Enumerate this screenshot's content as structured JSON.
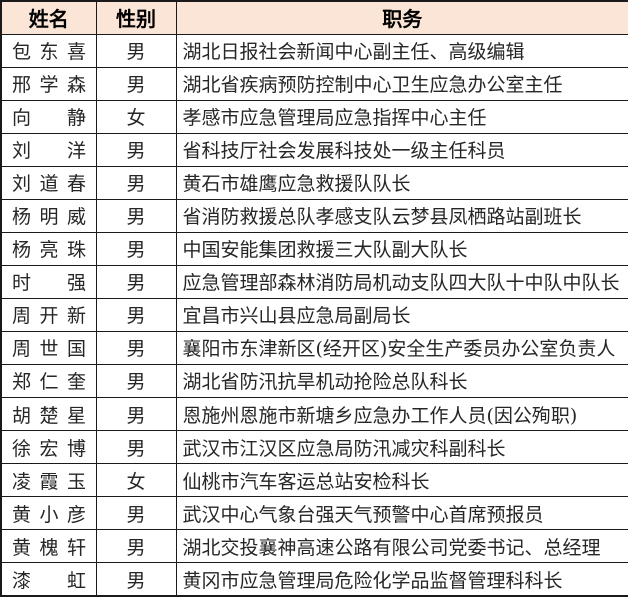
{
  "table": {
    "colors": {
      "header_bg": "#fbe5d6",
      "border": "#1a1a1a",
      "text": "#262626"
    },
    "columns": [
      {
        "key": "name",
        "label": "姓名"
      },
      {
        "key": "gender",
        "label": "性别"
      },
      {
        "key": "position",
        "label": "职务"
      }
    ],
    "rows": [
      {
        "name": "包东喜",
        "gender": "男",
        "position": "湖北日报社会新闻中心副主任、高级编辑"
      },
      {
        "name": "邢学森",
        "gender": "男",
        "position": "湖北省疾病预防控制中心卫生应急办公室主任"
      },
      {
        "name": "向 静",
        "gender": "女",
        "position": "孝感市应急管理局应急指挥中心主任"
      },
      {
        "name": "刘 洋",
        "gender": "男",
        "position": "省科技厅社会发展科技处一级主任科员"
      },
      {
        "name": "刘道春",
        "gender": "男",
        "position": "黄石市雄鹰应急救援队队长"
      },
      {
        "name": "杨明威",
        "gender": "男",
        "position": "省消防救援总队孝感支队云梦县凤栖路站副班长"
      },
      {
        "name": "杨亮珠",
        "gender": "男",
        "position": "中国安能集团救援三大队副大队长"
      },
      {
        "name": "时 强",
        "gender": "男",
        "position": "应急管理部森林消防局机动支队四大队十中队中队长"
      },
      {
        "name": "周开新",
        "gender": "男",
        "position": "宜昌市兴山县应急局副局长"
      },
      {
        "name": "周世国",
        "gender": "男",
        "position": "襄阳市东津新区(经开区)安全生产委员办公室负责人"
      },
      {
        "name": "郑仁奎",
        "gender": "男",
        "position": "湖北省防汛抗旱机动抢险总队科长"
      },
      {
        "name": "胡楚星",
        "gender": "男",
        "position": "恩施州恩施市新塘乡应急办工作人员(因公殉职)"
      },
      {
        "name": "徐宏博",
        "gender": "男",
        "position": "武汉市江汉区应急局防汛减灾科副科长"
      },
      {
        "name": "凌霞玉",
        "gender": "女",
        "position": "仙桃市汽车客运总站安检科长"
      },
      {
        "name": "黄小彦",
        "gender": "男",
        "position": "武汉中心气象台强天气预警中心首席预报员"
      },
      {
        "name": "黄槐轩",
        "gender": "男",
        "position": "湖北交投襄神高速公路有限公司党委书记、总经理"
      },
      {
        "name": "漆 虹",
        "gender": "男",
        "position": "黄冈市应急管理局危险化学品监督管理科科长"
      }
    ]
  }
}
